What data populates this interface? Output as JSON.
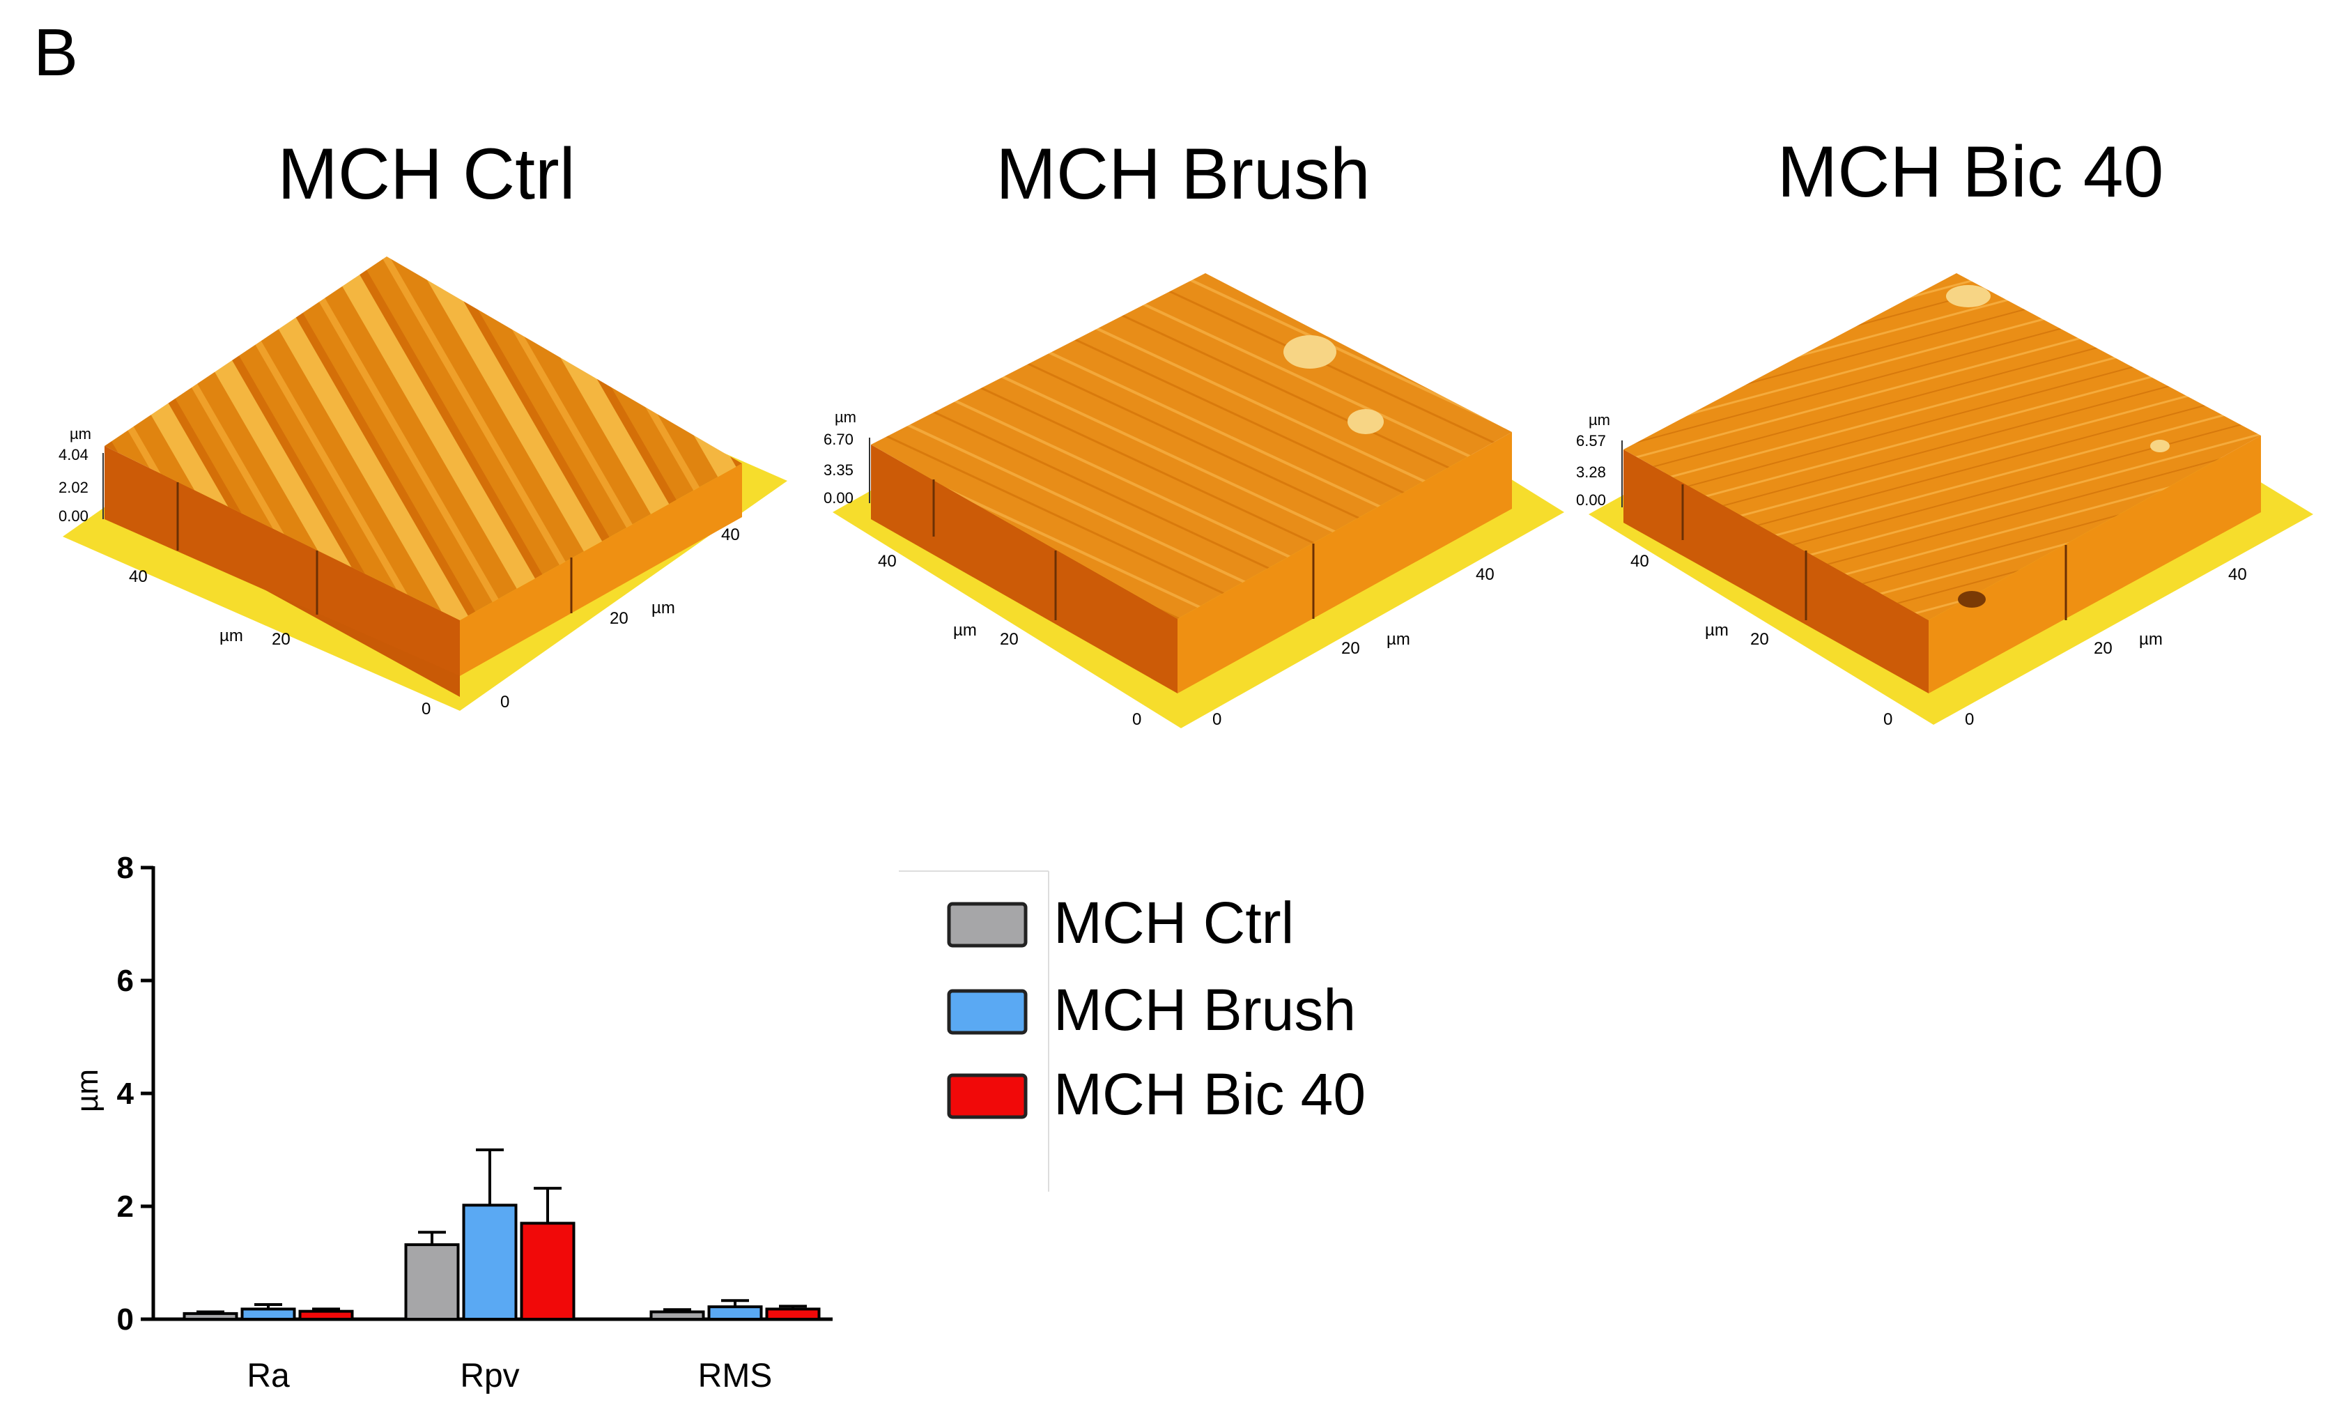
{
  "panel_label": "B",
  "afm_panels": [
    {
      "title": "MCH Ctrl",
      "z_unit": "µm",
      "z_ticks": [
        "4.04",
        "2.02",
        "0.00"
      ],
      "x_ticks": [
        "0",
        "20",
        "40"
      ],
      "x_unit": "µm",
      "y_ticks": [
        "0",
        "20",
        "40"
      ],
      "y_unit": "µm"
    },
    {
      "title": "MCH Brush",
      "z_unit": "µm",
      "z_ticks": [
        "6.70",
        "3.35",
        "0.00"
      ],
      "x_ticks": [
        "0",
        "20",
        "40"
      ],
      "x_unit": "µm",
      "y_ticks": [
        "0",
        "20",
        "40"
      ],
      "y_unit": "µm"
    },
    {
      "title": "MCH Bic 40",
      "z_unit": "µm",
      "z_ticks": [
        "6.57",
        "3.28",
        "0.00"
      ],
      "x_ticks": [
        "0",
        "20",
        "40"
      ],
      "x_unit": "µm",
      "y_ticks": [
        "0",
        "20",
        "40"
      ],
      "y_unit": "µm"
    }
  ],
  "colors": {
    "afm_top": "#e58a12",
    "afm_top_light": "#f3b13a",
    "afm_side_left": "#cc5a06",
    "afm_side_right": "#ef8e12",
    "afm_base": "#f6dd2c",
    "ctrl": "#a6a6a8",
    "brush": "#5aa9f3",
    "bic40": "#f10909",
    "axis": "#000000"
  },
  "chart_data": {
    "type": "bar",
    "title": "",
    "xlabel": "",
    "ylabel": "µm",
    "ylim": [
      0,
      8
    ],
    "yticks": [
      0,
      2,
      4,
      6,
      8
    ],
    "categories": [
      "Ra",
      "Rpv",
      "RMS"
    ],
    "series": [
      {
        "name": "MCH Ctrl",
        "color": "#a6a6a8",
        "values": [
          0.1,
          1.32,
          0.13
        ],
        "errors": [
          0.03,
          0.22,
          0.04
        ]
      },
      {
        "name": "MCH Brush",
        "color": "#5aa9f3",
        "values": [
          0.18,
          2.02,
          0.22
        ],
        "errors": [
          0.08,
          0.98,
          0.11
        ]
      },
      {
        "name": "MCH Bic 40",
        "color": "#f10909",
        "values": [
          0.14,
          1.7,
          0.18
        ],
        "errors": [
          0.04,
          0.62,
          0.05
        ]
      }
    ],
    "legend": {
      "placement": "right",
      "entries": [
        "MCH Ctrl",
        "MCH Brush",
        "MCH Bic 40"
      ]
    }
  }
}
